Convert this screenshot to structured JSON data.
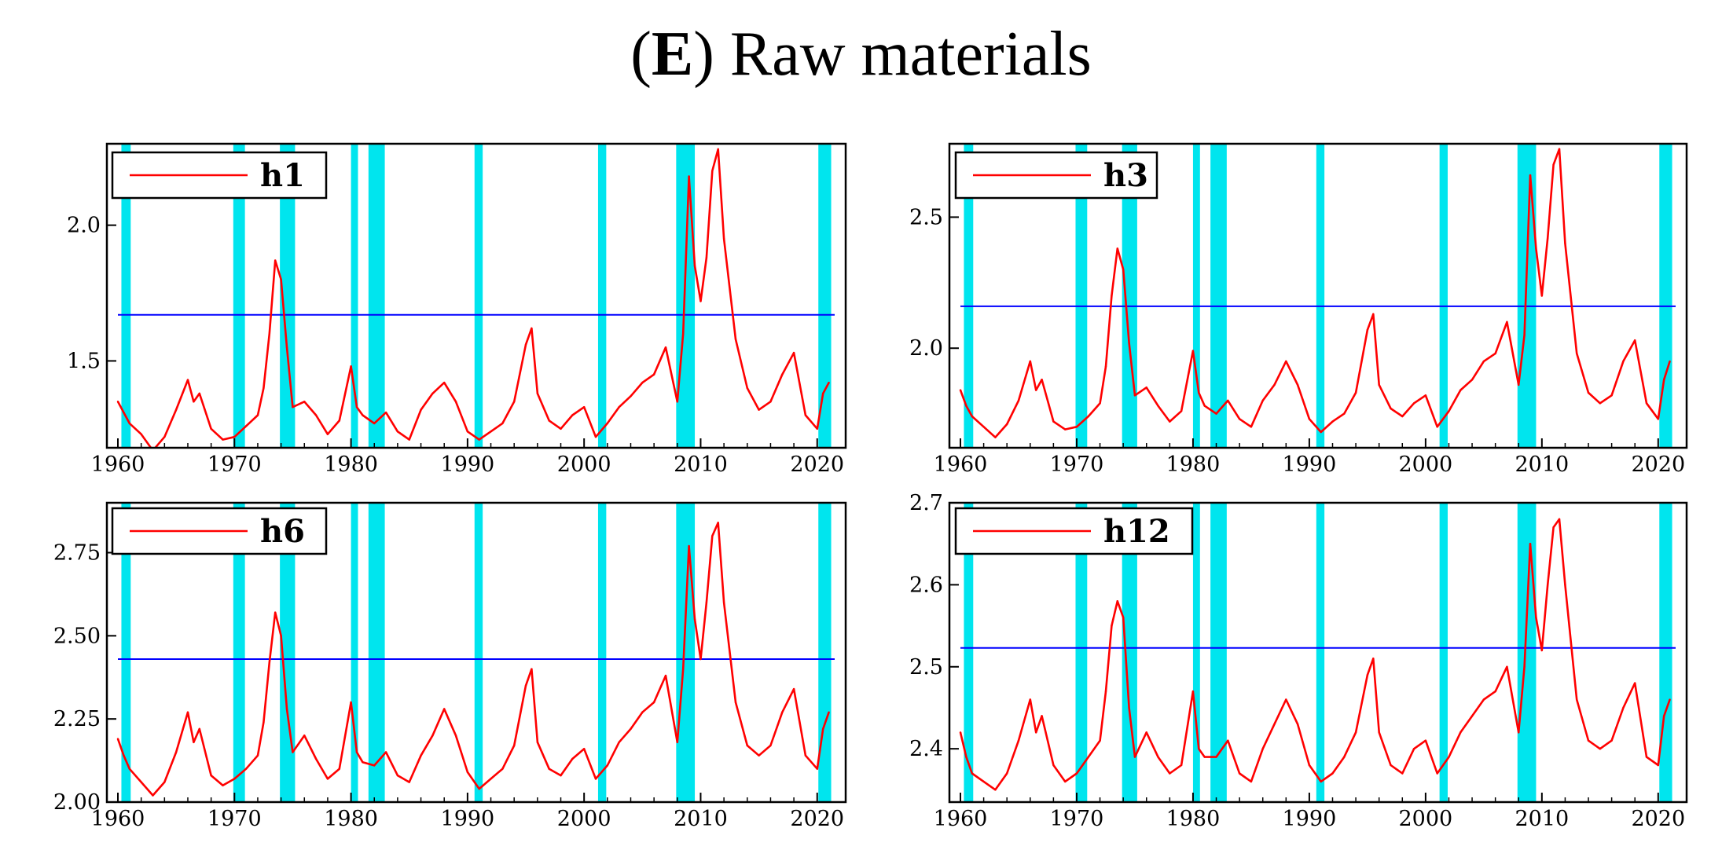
{
  "figure": {
    "title_open": "(",
    "title_letter": "E",
    "title_rest": ") Raw materials"
  },
  "colors": {
    "series": "#ff0000",
    "threshold": "#0000ff",
    "recession": "#00e5ee",
    "frame": "#000000"
  },
  "recessions": [
    [
      1960.3,
      1961.1
    ],
    [
      1969.9,
      1970.9
    ],
    [
      1973.9,
      1975.2
    ],
    [
      1980.0,
      1980.6
    ],
    [
      1981.5,
      1982.9
    ],
    [
      1990.6,
      1991.3
    ],
    [
      2001.2,
      2001.9
    ],
    [
      2007.9,
      2009.5
    ],
    [
      2020.1,
      2021.2
    ]
  ],
  "chart_data": [
    {
      "type": "line",
      "legend": "h1",
      "xlim": [
        1960,
        2021.5
      ],
      "ylim": [
        1.18,
        2.3
      ],
      "xticks": [
        "1960",
        "1970",
        "1980",
        "1990",
        "2000",
        "2010",
        "2020"
      ],
      "yticks": [
        "1.5",
        "2.0"
      ],
      "ytick_values": [
        1.5,
        2.0
      ],
      "threshold": 1.67,
      "x": [
        1960.0,
        1960.5,
        1961.0,
        1962.0,
        1963.0,
        1964.0,
        1965.0,
        1966.0,
        1966.5,
        1967.0,
        1968.0,
        1969.0,
        1970.0,
        1971.0,
        1972.0,
        1972.5,
        1973.0,
        1973.5,
        1974.0,
        1974.5,
        1975.0,
        1976.0,
        1977.0,
        1978.0,
        1979.0,
        1980.0,
        1980.5,
        1981.0,
        1982.0,
        1983.0,
        1984.0,
        1985.0,
        1986.0,
        1987.0,
        1988.0,
        1989.0,
        1990.0,
        1991.0,
        1992.0,
        1993.0,
        1994.0,
        1995.0,
        1995.5,
        1996.0,
        1997.0,
        1998.0,
        1999.0,
        2000.0,
        2001.0,
        2002.0,
        2003.0,
        2004.0,
        2005.0,
        2006.0,
        2007.0,
        2008.0,
        2008.5,
        2009.0,
        2009.5,
        2010.0,
        2010.5,
        2011.0,
        2011.5,
        2012.0,
        2013.0,
        2014.0,
        2015.0,
        2016.0,
        2017.0,
        2018.0,
        2019.0,
        2020.0,
        2020.5,
        2021.0
      ],
      "y": [
        1.35,
        1.31,
        1.27,
        1.23,
        1.17,
        1.22,
        1.32,
        1.43,
        1.35,
        1.38,
        1.25,
        1.21,
        1.22,
        1.26,
        1.3,
        1.4,
        1.6,
        1.87,
        1.8,
        1.55,
        1.33,
        1.35,
        1.3,
        1.23,
        1.28,
        1.48,
        1.33,
        1.3,
        1.27,
        1.31,
        1.24,
        1.21,
        1.32,
        1.38,
        1.42,
        1.35,
        1.24,
        1.21,
        1.24,
        1.27,
        1.35,
        1.56,
        1.62,
        1.38,
        1.28,
        1.25,
        1.3,
        1.33,
        1.22,
        1.27,
        1.33,
        1.37,
        1.42,
        1.45,
        1.55,
        1.35,
        1.6,
        2.18,
        1.85,
        1.72,
        1.88,
        2.2,
        2.28,
        1.95,
        1.58,
        1.4,
        1.32,
        1.35,
        1.45,
        1.53,
        1.3,
        1.25,
        1.38,
        1.42
      ]
    },
    {
      "type": "line",
      "legend": "h3",
      "xlim": [
        1960,
        2021.5
      ],
      "ylim": [
        1.62,
        2.78
      ],
      "xticks": [
        "1960",
        "1970",
        "1980",
        "1990",
        "2000",
        "2010",
        "2020"
      ],
      "yticks": [
        "2.0",
        "2.5"
      ],
      "ytick_values": [
        2.0,
        2.5
      ],
      "threshold": 2.16,
      "x": [
        1960.0,
        1960.5,
        1961.0,
        1962.0,
        1963.0,
        1964.0,
        1965.0,
        1966.0,
        1966.5,
        1967.0,
        1968.0,
        1969.0,
        1970.0,
        1971.0,
        1972.0,
        1972.5,
        1973.0,
        1973.5,
        1974.0,
        1974.5,
        1975.0,
        1976.0,
        1977.0,
        1978.0,
        1979.0,
        1980.0,
        1980.5,
        1981.0,
        1982.0,
        1983.0,
        1984.0,
        1985.0,
        1986.0,
        1987.0,
        1988.0,
        1989.0,
        1990.0,
        1991.0,
        1992.0,
        1993.0,
        1994.0,
        1995.0,
        1995.5,
        1996.0,
        1997.0,
        1998.0,
        1999.0,
        2000.0,
        2001.0,
        2002.0,
        2003.0,
        2004.0,
        2005.0,
        2006.0,
        2007.0,
        2008.0,
        2008.5,
        2009.0,
        2009.5,
        2010.0,
        2010.5,
        2011.0,
        2011.5,
        2012.0,
        2013.0,
        2014.0,
        2015.0,
        2016.0,
        2017.0,
        2018.0,
        2019.0,
        2020.0,
        2020.5,
        2021.0
      ],
      "y": [
        1.84,
        1.78,
        1.74,
        1.7,
        1.66,
        1.71,
        1.8,
        1.95,
        1.84,
        1.88,
        1.72,
        1.69,
        1.7,
        1.74,
        1.79,
        1.93,
        2.2,
        2.38,
        2.3,
        2.02,
        1.82,
        1.85,
        1.78,
        1.72,
        1.76,
        1.99,
        1.83,
        1.78,
        1.75,
        1.8,
        1.73,
        1.7,
        1.8,
        1.86,
        1.95,
        1.86,
        1.73,
        1.68,
        1.72,
        1.75,
        1.83,
        2.07,
        2.13,
        1.86,
        1.77,
        1.74,
        1.79,
        1.82,
        1.7,
        1.76,
        1.84,
        1.88,
        1.95,
        1.98,
        2.1,
        1.86,
        2.05,
        2.66,
        2.38,
        2.2,
        2.42,
        2.7,
        2.76,
        2.4,
        1.98,
        1.83,
        1.79,
        1.82,
        1.95,
        2.03,
        1.79,
        1.73,
        1.88,
        1.95
      ]
    },
    {
      "type": "line",
      "legend": "h6",
      "xlim": [
        1960,
        2021.5
      ],
      "ylim": [
        2.0,
        2.9
      ],
      "xticks": [
        "1960",
        "1970",
        "1980",
        "1990",
        "2000",
        "2010",
        "2020"
      ],
      "yticks": [
        "2.00",
        "2.25",
        "2.50",
        "2.75"
      ],
      "ytick_values": [
        2.0,
        2.25,
        2.5,
        2.75
      ],
      "threshold": 2.43,
      "x": [
        1960.0,
        1960.5,
        1961.0,
        1962.0,
        1963.0,
        1964.0,
        1965.0,
        1966.0,
        1966.5,
        1967.0,
        1968.0,
        1969.0,
        1970.0,
        1971.0,
        1972.0,
        1972.5,
        1973.0,
        1973.5,
        1974.0,
        1974.5,
        1975.0,
        1976.0,
        1977.0,
        1978.0,
        1979.0,
        1980.0,
        1980.5,
        1981.0,
        1982.0,
        1983.0,
        1984.0,
        1985.0,
        1986.0,
        1987.0,
        1988.0,
        1989.0,
        1990.0,
        1991.0,
        1992.0,
        1993.0,
        1994.0,
        1995.0,
        1995.5,
        1996.0,
        1997.0,
        1998.0,
        1999.0,
        2000.0,
        2001.0,
        2002.0,
        2003.0,
        2004.0,
        2005.0,
        2006.0,
        2007.0,
        2008.0,
        2008.5,
        2009.0,
        2009.5,
        2010.0,
        2010.5,
        2011.0,
        2011.5,
        2012.0,
        2013.0,
        2014.0,
        2015.0,
        2016.0,
        2017.0,
        2018.0,
        2019.0,
        2020.0,
        2020.5,
        2021.0
      ],
      "y": [
        2.19,
        2.14,
        2.1,
        2.06,
        2.02,
        2.06,
        2.15,
        2.27,
        2.18,
        2.22,
        2.08,
        2.05,
        2.07,
        2.1,
        2.14,
        2.24,
        2.42,
        2.57,
        2.5,
        2.28,
        2.15,
        2.2,
        2.13,
        2.07,
        2.1,
        2.3,
        2.15,
        2.12,
        2.11,
        2.15,
        2.08,
        2.06,
        2.14,
        2.2,
        2.28,
        2.2,
        2.09,
        2.04,
        2.07,
        2.1,
        2.17,
        2.35,
        2.4,
        2.18,
        2.1,
        2.08,
        2.13,
        2.16,
        2.07,
        2.11,
        2.18,
        2.22,
        2.27,
        2.3,
        2.38,
        2.18,
        2.4,
        2.77,
        2.55,
        2.43,
        2.6,
        2.8,
        2.84,
        2.6,
        2.3,
        2.17,
        2.14,
        2.17,
        2.27,
        2.34,
        2.14,
        2.1,
        2.22,
        2.27
      ]
    },
    {
      "type": "line",
      "legend": "h12",
      "xlim": [
        1960,
        2021.5
      ],
      "ylim": [
        2.335,
        2.7
      ],
      "xticks": [
        "1960",
        "1970",
        "1980",
        "1990",
        "2000",
        "2010",
        "2020"
      ],
      "yticks": [
        "2.4",
        "2.5",
        "2.6",
        "2.7"
      ],
      "ytick_values": [
        2.4,
        2.5,
        2.6,
        2.7
      ],
      "threshold": 2.523,
      "x": [
        1960.0,
        1960.5,
        1961.0,
        1962.0,
        1963.0,
        1964.0,
        1965.0,
        1966.0,
        1966.5,
        1967.0,
        1968.0,
        1969.0,
        1970.0,
        1971.0,
        1972.0,
        1972.5,
        1973.0,
        1973.5,
        1974.0,
        1974.5,
        1975.0,
        1976.0,
        1977.0,
        1978.0,
        1979.0,
        1980.0,
        1980.5,
        1981.0,
        1982.0,
        1983.0,
        1984.0,
        1985.0,
        1986.0,
        1987.0,
        1988.0,
        1989.0,
        1990.0,
        1991.0,
        1992.0,
        1993.0,
        1994.0,
        1995.0,
        1995.5,
        1996.0,
        1997.0,
        1998.0,
        1999.0,
        2000.0,
        2001.0,
        2002.0,
        2003.0,
        2004.0,
        2005.0,
        2006.0,
        2007.0,
        2008.0,
        2008.5,
        2009.0,
        2009.5,
        2010.0,
        2010.5,
        2011.0,
        2011.5,
        2012.0,
        2013.0,
        2014.0,
        2015.0,
        2016.0,
        2017.0,
        2018.0,
        2019.0,
        2020.0,
        2020.5,
        2021.0
      ],
      "y": [
        2.42,
        2.39,
        2.37,
        2.36,
        2.35,
        2.37,
        2.41,
        2.46,
        2.42,
        2.44,
        2.38,
        2.36,
        2.37,
        2.39,
        2.41,
        2.47,
        2.55,
        2.58,
        2.56,
        2.45,
        2.39,
        2.42,
        2.39,
        2.37,
        2.38,
        2.47,
        2.4,
        2.39,
        2.39,
        2.41,
        2.37,
        2.36,
        2.4,
        2.43,
        2.46,
        2.43,
        2.38,
        2.36,
        2.37,
        2.39,
        2.42,
        2.49,
        2.51,
        2.42,
        2.38,
        2.37,
        2.4,
        2.41,
        2.37,
        2.39,
        2.42,
        2.44,
        2.46,
        2.47,
        2.5,
        2.42,
        2.5,
        2.65,
        2.56,
        2.52,
        2.6,
        2.67,
        2.68,
        2.6,
        2.46,
        2.41,
        2.4,
        2.41,
        2.45,
        2.48,
        2.39,
        2.38,
        2.44,
        2.46
      ]
    }
  ]
}
